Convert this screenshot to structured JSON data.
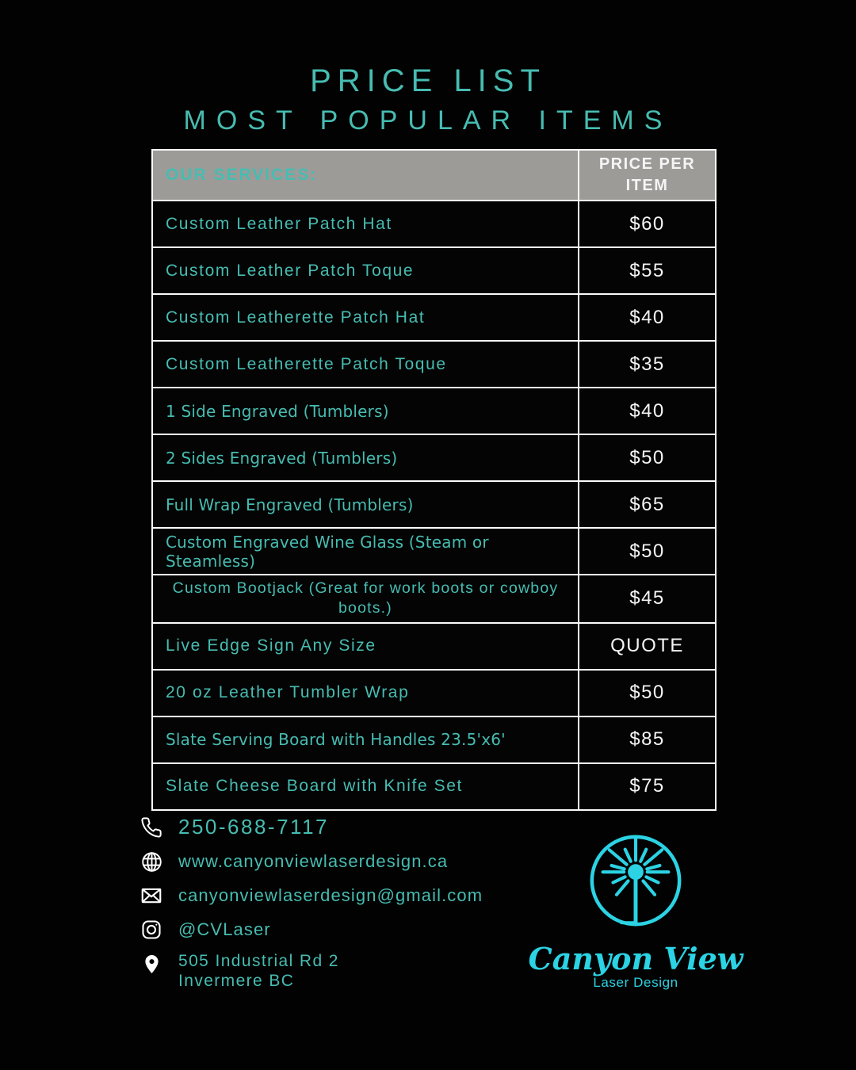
{
  "title": {
    "line1": "PRICE LIST",
    "line2": "MOST POPULAR ITEMS"
  },
  "table": {
    "header": {
      "services": "OUR SERVICES:",
      "price": "PRICE PER ITEM"
    },
    "rows": [
      {
        "service": "Custom Leather Patch Hat",
        "price": "$60",
        "variant": "spaced"
      },
      {
        "service": "Custom Leather Patch Toque",
        "price": "$55",
        "variant": "spaced"
      },
      {
        "service": "Custom Leatherette Patch Hat",
        "price": "$40",
        "variant": "spaced"
      },
      {
        "service": "Custom Leatherette Patch Toque",
        "price": "$35",
        "variant": "spaced"
      },
      {
        "service": "1 Side Engraved (Tumblers)",
        "price": "$40",
        "variant": "plain"
      },
      {
        "service": "2 Sides Engraved (Tumblers)",
        "price": "$50",
        "variant": "plain"
      },
      {
        "service": "Full Wrap Engraved (Tumblers)",
        "price": "$65",
        "variant": "plain"
      },
      {
        "service": "Custom Engraved Wine Glass (Steam or Steamless)",
        "price": "$50",
        "variant": "plain"
      },
      {
        "service": "Custom Bootjack (Great for work boots or cowboy boots.)",
        "price": "$45",
        "variant": "center"
      },
      {
        "service": "Live Edge Sign Any Size",
        "price": "QUOTE",
        "variant": "spaced"
      },
      {
        "service": "20 oz Leather Tumbler Wrap",
        "price": "$50",
        "variant": "spaced"
      },
      {
        "service": "Slate Serving Board with Handles 23.5'x6'",
        "price": "$85",
        "variant": "plain"
      },
      {
        "service": "Slate Cheese Board with Knife Set",
        "price": "$75",
        "variant": "spaced"
      }
    ]
  },
  "contact": {
    "phone": "250-688-7117",
    "website": "www.canyonviewlaserdesign.ca",
    "email": "canyonviewlaserdesign@gmail.com",
    "instagram": "@CVLaser",
    "address_line1": "505 Industrial Rd 2",
    "address_line2": "Invermere BC"
  },
  "logo": {
    "name": "Canyon View",
    "subtitle": "Laser Design"
  },
  "icons": [
    "phone-icon",
    "globe-icon",
    "email-icon",
    "instagram-icon",
    "location-pin-icon",
    "laser-starburst-logo"
  ],
  "colors": {
    "teal": "#47bcb1",
    "cyan": "#2bd3e4",
    "header_gray": "#9d9b98",
    "price_white": "#f5f5f5",
    "background": "#020202"
  }
}
